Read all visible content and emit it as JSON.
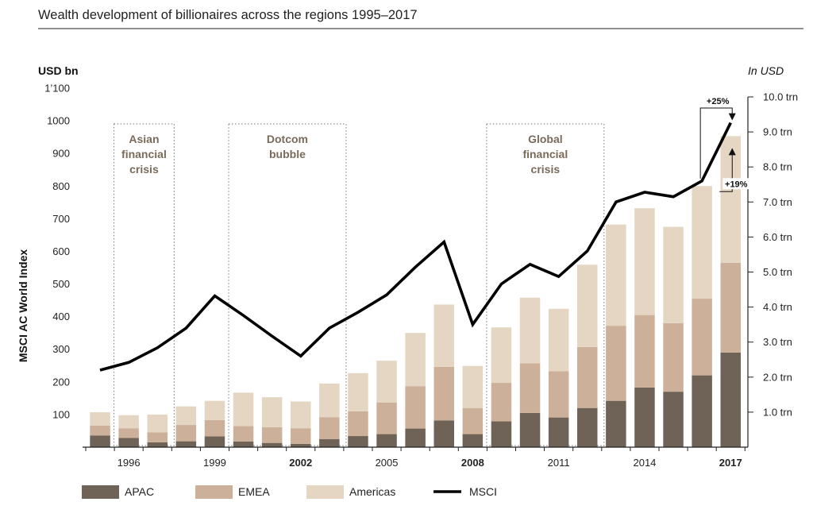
{
  "chart_data": {
    "type": "bar",
    "title": "Wealth development of billionaires across the regions 1995–2017",
    "left_axis_unit": "USD bn",
    "right_axis_unit": "In USD",
    "ylabel": "MSCI AC World Index",
    "ylim": [
      0,
      1100
    ],
    "y2lim": [
      0,
      10.0
    ],
    "left_ticks": [
      "100",
      "200",
      "300",
      "400",
      "500",
      "600",
      "700",
      "800",
      "900",
      "1000",
      "1’100"
    ],
    "right_ticks": [
      "1.0 trn",
      "2.0 trn",
      "3.0 trn",
      "4.0 trn",
      "5.0 trn",
      "6.0 trn",
      "7.0 trn",
      "8.0 trn",
      "9.0 trn",
      "10.0 trn"
    ],
    "categories": [
      "1995",
      "1996",
      "1997",
      "1998",
      "1999",
      "2000",
      "2001",
      "2002",
      "2003",
      "2004",
      "2005",
      "2006",
      "2007",
      "2008",
      "2009",
      "2010",
      "2011",
      "2012",
      "2013",
      "2014",
      "2015",
      "2016",
      "2017"
    ],
    "x_tick_labels": [
      "1996",
      "1999",
      "2002",
      "2005",
      "2008",
      "2011",
      "2014",
      "2017"
    ],
    "bold_x_ticks": [
      "2002",
      "2008",
      "2017"
    ],
    "stacked": true,
    "series": [
      {
        "name": "APAC",
        "color": "#6f6257",
        "values": [
          36,
          28,
          15,
          18,
          33,
          17,
          13,
          10,
          25,
          34,
          40,
          57,
          82,
          40,
          79,
          105,
          91,
          120,
          142,
          183,
          170,
          220,
          290
        ]
      },
      {
        "name": "EMEA",
        "color": "#cdb09a",
        "values": [
          30,
          30,
          30,
          50,
          50,
          48,
          48,
          48,
          67,
          76,
          97,
          130,
          164,
          80,
          118,
          152,
          142,
          187,
          230,
          222,
          210,
          235,
          275
        ]
      },
      {
        "name": "Americas",
        "color": "#e4d6c2",
        "values": [
          41,
          40,
          55,
          57,
          59,
          102,
          92,
          82,
          103,
          117,
          128,
          163,
          191,
          129,
          170,
          201,
          191,
          252,
          310,
          327,
          295,
          345,
          388
        ]
      }
    ],
    "line_series": {
      "name": "MSCI",
      "color": "#000000",
      "axis": "right",
      "values": [
        2.2,
        2.42,
        2.84,
        3.4,
        4.32,
        3.76,
        3.17,
        2.6,
        3.4,
        3.85,
        4.35,
        5.14,
        5.86,
        3.5,
        4.66,
        5.22,
        4.87,
        5.6,
        7.0,
        7.28,
        7.15,
        7.6,
        9.26
      ]
    },
    "annotations": [
      {
        "lines": [
          "Asian",
          "financial",
          "crisis"
        ],
        "from": "1996",
        "to": "1997"
      },
      {
        "lines": [
          "Dotcom",
          "bubble"
        ],
        "from": "2000",
        "to": "2003"
      },
      {
        "lines": [
          "Global",
          "financial",
          "crisis"
        ],
        "from": "2009",
        "to": "2012"
      }
    ],
    "growth_labels": {
      "line": "+25%",
      "bars": "+19%"
    },
    "legend": [
      "APAC",
      "EMEA",
      "Americas",
      "MSCI"
    ],
    "legend_placement": "bottom"
  }
}
